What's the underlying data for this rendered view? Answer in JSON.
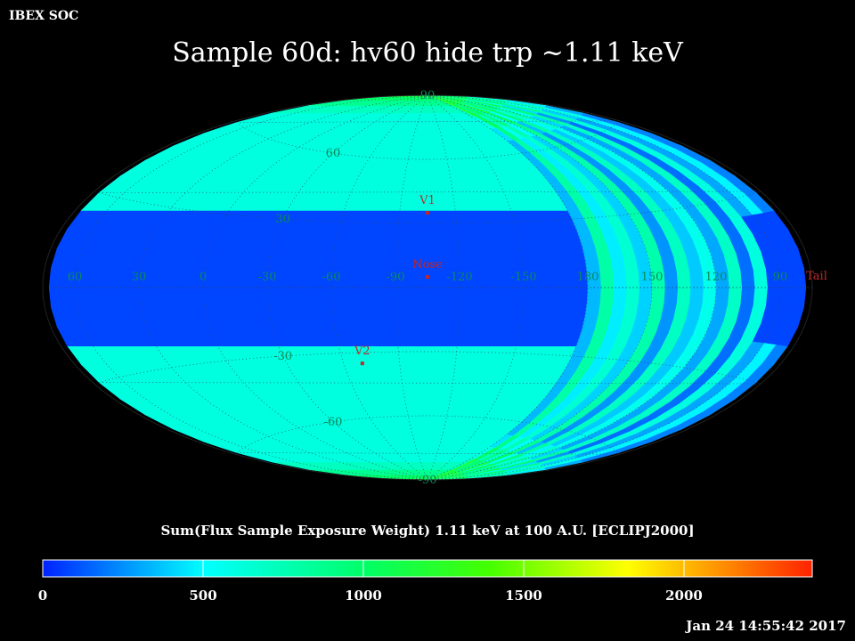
{
  "header": {
    "corner_label": "IBEX SOC",
    "title": "Sample 60d: hv60 hide trp ~1.11 keV"
  },
  "map": {
    "projection": "aitoff",
    "lon_labels": [
      {
        "text": "60",
        "lon": 60
      },
      {
        "text": "30",
        "lon": 30
      },
      {
        "text": "0",
        "lon": 0
      },
      {
        "text": "-30",
        "lon": -30
      },
      {
        "text": "-60",
        "lon": -60
      },
      {
        "text": "-90",
        "lon": -90
      },
      {
        "text": "-120",
        "lon": -120
      },
      {
        "text": "-150",
        "lon": -150
      },
      {
        "text": "180",
        "lon": 180
      },
      {
        "text": "150",
        "lon": 150
      },
      {
        "text": "120",
        "lon": 120
      },
      {
        "text": "90",
        "lon": 90
      }
    ],
    "lat_labels": [
      {
        "text": "90",
        "lat": 90
      },
      {
        "text": "60",
        "lat": 60
      },
      {
        "text": "30",
        "lat": 30
      },
      {
        "text": "-30",
        "lat": -30
      },
      {
        "text": "-60",
        "lat": -60
      },
      {
        "text": "-90",
        "lat": -90
      }
    ],
    "markers": [
      {
        "label": "V1",
        "lon": -105,
        "lat": 35
      },
      {
        "label": "Nose",
        "lon": -105,
        "lat": 5
      },
      {
        "label": "V2",
        "lon": -70,
        "lat": -35
      },
      {
        "label": "Tail",
        "lon": 75,
        "lat": -5
      }
    ]
  },
  "colorbar": {
    "caption": "Sum(Flux Sample Exposure Weight)  1.11 keV at 100 A.U. [ECLIPJ2000]",
    "min": 0,
    "max": 2400,
    "tick_labels": [
      "0",
      "500",
      "1000",
      "1500",
      "2000"
    ],
    "tick_values": [
      0,
      500,
      1000,
      1500,
      2000
    ],
    "colors": [
      "#0022ff",
      "#00ffff",
      "#00ff00",
      "#ffff00",
      "#ff2200"
    ]
  },
  "footer": {
    "timestamp": "Jan 24 14:55:42 2017"
  }
}
